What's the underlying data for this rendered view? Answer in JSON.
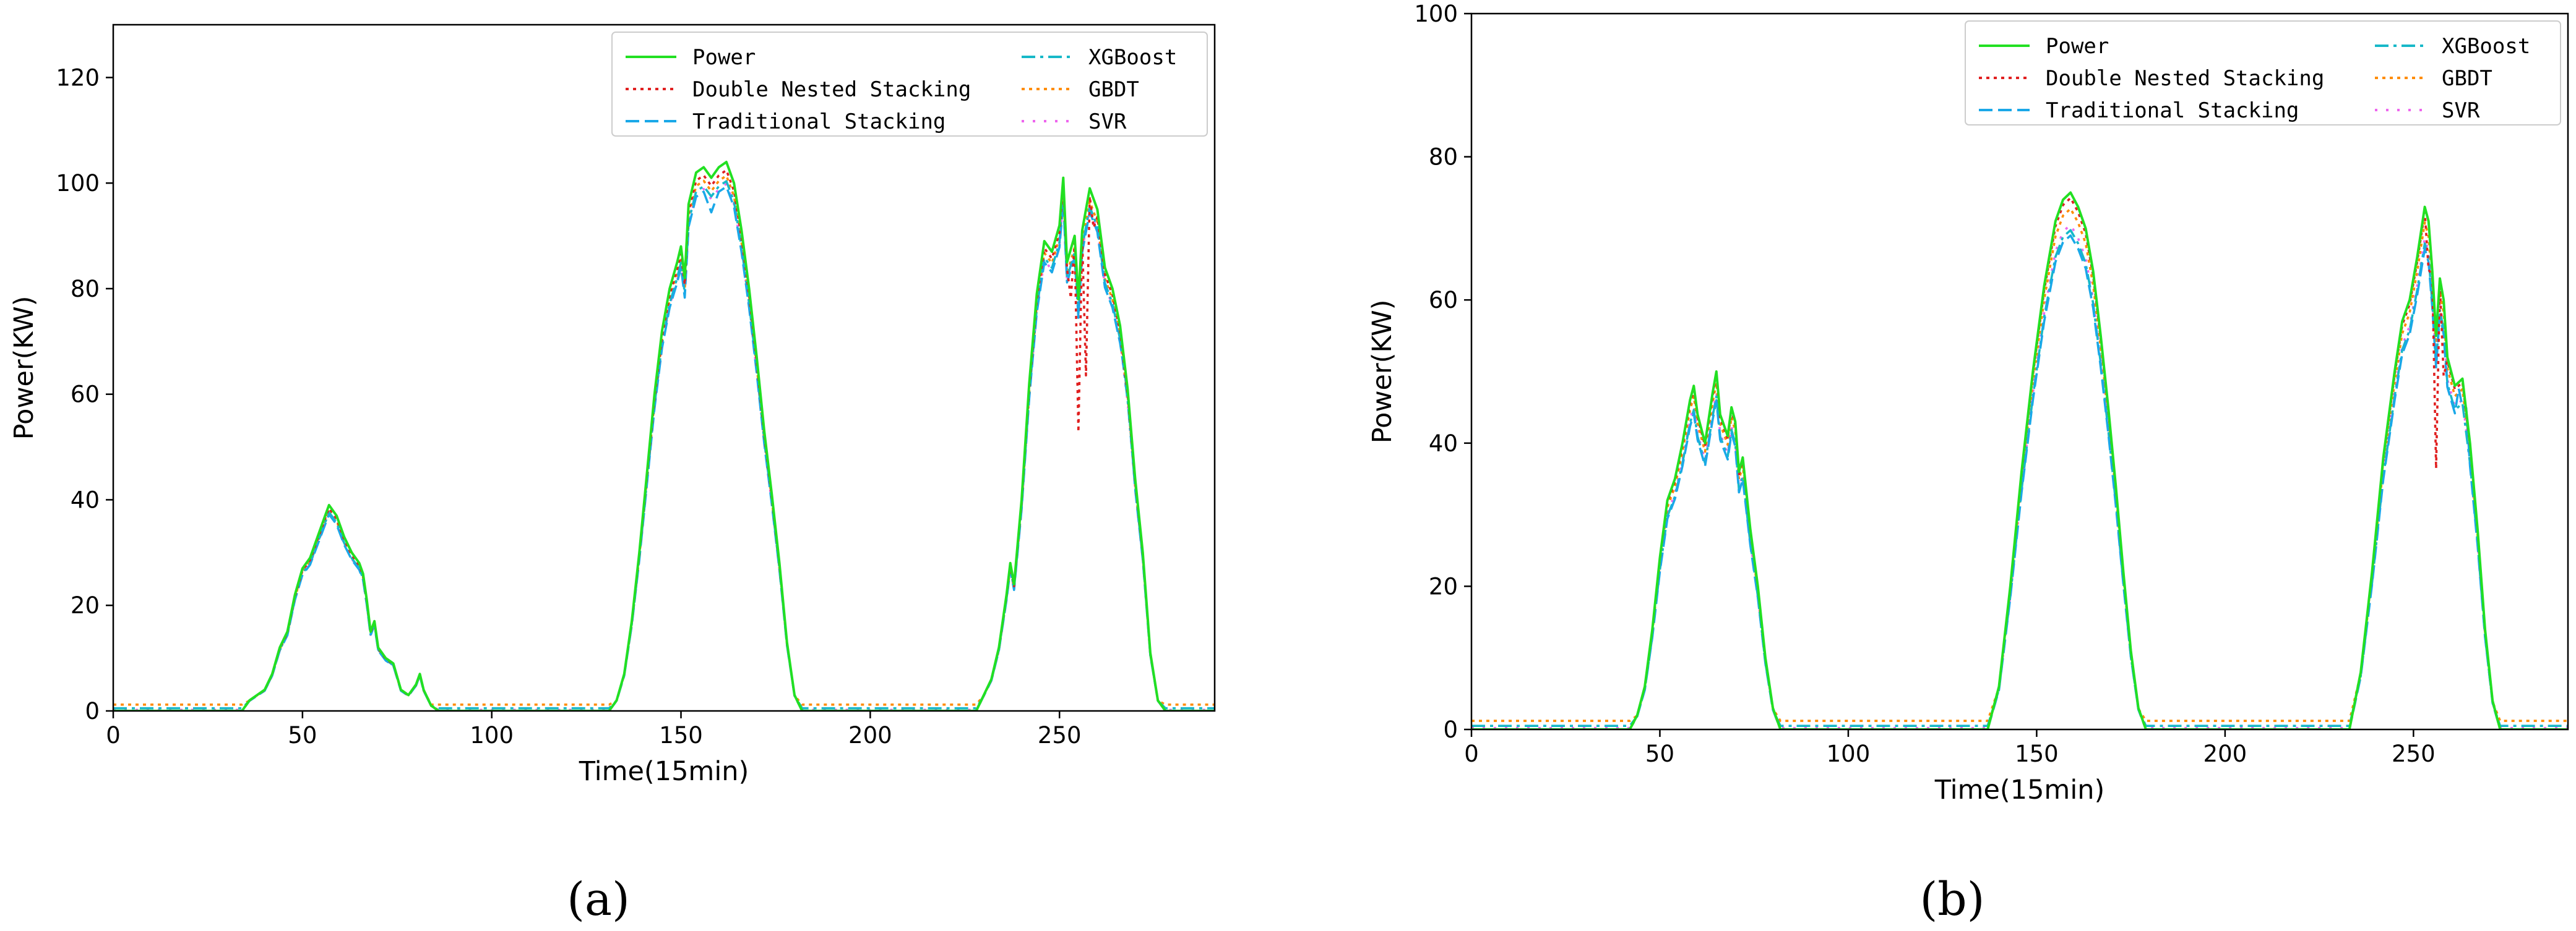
{
  "chart_data": [
    {
      "type": "line",
      "panel_label": "a",
      "title": "",
      "xlabel": "Time(15min)",
      "ylabel": "Power(KW)",
      "xlim": [
        0,
        291
      ],
      "ylim": [
        0,
        130
      ],
      "xticks": [
        0,
        50,
        100,
        150,
        200,
        250
      ],
      "yticks": [
        0,
        20,
        40,
        60,
        80,
        100,
        120
      ],
      "grid": false,
      "legend_position": "top-right",
      "baselines": {
        "GBDT": 1.2,
        "SVR": 0.2,
        "XGBoost": 0.5
      },
      "power": [
        [
          0,
          0
        ],
        [
          34,
          0
        ],
        [
          36,
          2
        ],
        [
          38,
          3
        ],
        [
          40,
          4
        ],
        [
          42,
          7
        ],
        [
          44,
          12
        ],
        [
          46,
          15
        ],
        [
          48,
          22
        ],
        [
          50,
          27
        ],
        [
          52,
          29
        ],
        [
          54,
          33
        ],
        [
          56,
          37
        ],
        [
          57,
          39
        ],
        [
          59,
          37
        ],
        [
          61,
          33
        ],
        [
          63,
          30
        ],
        [
          65,
          28
        ],
        [
          66,
          26
        ],
        [
          67,
          21
        ],
        [
          68,
          15
        ],
        [
          69,
          17
        ],
        [
          70,
          12
        ],
        [
          72,
          10
        ],
        [
          74,
          9
        ],
        [
          76,
          4
        ],
        [
          78,
          3
        ],
        [
          80,
          5
        ],
        [
          81,
          7
        ],
        [
          82,
          4
        ],
        [
          84,
          1
        ],
        [
          86,
          0
        ],
        [
          131,
          0
        ],
        [
          133,
          2
        ],
        [
          135,
          7
        ],
        [
          137,
          17
        ],
        [
          139,
          30
        ],
        [
          141,
          45
        ],
        [
          143,
          60
        ],
        [
          145,
          72
        ],
        [
          147,
          80
        ],
        [
          149,
          85
        ],
        [
          150,
          88
        ],
        [
          151,
          82
        ],
        [
          152,
          96
        ],
        [
          153,
          99
        ],
        [
          154,
          102
        ],
        [
          156,
          103
        ],
        [
          158,
          101
        ],
        [
          160,
          103
        ],
        [
          162,
          104
        ],
        [
          164,
          100
        ],
        [
          166,
          91
        ],
        [
          168,
          80
        ],
        [
          170,
          67
        ],
        [
          172,
          53
        ],
        [
          174,
          41
        ],
        [
          176,
          28
        ],
        [
          178,
          13
        ],
        [
          180,
          3
        ],
        [
          182,
          0
        ],
        [
          228,
          0
        ],
        [
          230,
          3
        ],
        [
          232,
          6
        ],
        [
          234,
          12
        ],
        [
          236,
          22
        ],
        [
          237,
          28
        ],
        [
          238,
          24
        ],
        [
          240,
          40
        ],
        [
          242,
          62
        ],
        [
          244,
          79
        ],
        [
          246,
          89
        ],
        [
          248,
          87
        ],
        [
          250,
          92
        ],
        [
          251,
          101
        ],
        [
          252,
          85
        ],
        [
          254,
          90
        ],
        [
          255,
          78
        ],
        [
          256,
          91
        ],
        [
          258,
          99
        ],
        [
          260,
          95
        ],
        [
          262,
          84
        ],
        [
          264,
          80
        ],
        [
          266,
          73
        ],
        [
          268,
          61
        ],
        [
          270,
          44
        ],
        [
          272,
          30
        ],
        [
          274,
          11
        ],
        [
          276,
          2
        ],
        [
          278,
          0
        ],
        [
          291,
          0
        ]
      ],
      "series": [
        {
          "name": "Power"
        },
        {
          "name": "Double Nested Stacking"
        },
        {
          "name": "Traditional Stacking"
        },
        {
          "name": "XGBoost"
        },
        {
          "name": "GBDT"
        },
        {
          "name": "SVR"
        }
      ]
    },
    {
      "type": "line",
      "panel_label": "b",
      "title": "",
      "xlabel": "Time(15min)",
      "ylabel": "Power(KW)",
      "xlim": [
        0,
        291
      ],
      "ylim": [
        0,
        100
      ],
      "xticks": [
        0,
        50,
        100,
        150,
        200,
        250
      ],
      "yticks": [
        0,
        20,
        40,
        60,
        80,
        100
      ],
      "grid": false,
      "legend_position": "top-right",
      "baselines": {
        "GBDT": 1.2,
        "SVR": 0.2,
        "XGBoost": 0.5
      },
      "power": [
        [
          0,
          0
        ],
        [
          42,
          0
        ],
        [
          44,
          2
        ],
        [
          46,
          6
        ],
        [
          48,
          14
        ],
        [
          50,
          24
        ],
        [
          52,
          32
        ],
        [
          54,
          35
        ],
        [
          56,
          40
        ],
        [
          58,
          46
        ],
        [
          59,
          48
        ],
        [
          60,
          44
        ],
        [
          62,
          40
        ],
        [
          64,
          47
        ],
        [
          65,
          50
        ],
        [
          66,
          44
        ],
        [
          68,
          41
        ],
        [
          69,
          45
        ],
        [
          70,
          43
        ],
        [
          71,
          36
        ],
        [
          72,
          38
        ],
        [
          73,
          33
        ],
        [
          74,
          28
        ],
        [
          76,
          20
        ],
        [
          78,
          10
        ],
        [
          80,
          3
        ],
        [
          82,
          0
        ],
        [
          137,
          0
        ],
        [
          140,
          6
        ],
        [
          143,
          20
        ],
        [
          146,
          36
        ],
        [
          149,
          50
        ],
        [
          152,
          62
        ],
        [
          155,
          71
        ],
        [
          157,
          74
        ],
        [
          159,
          75
        ],
        [
          161,
          73
        ],
        [
          163,
          70
        ],
        [
          165,
          64
        ],
        [
          167,
          55
        ],
        [
          169,
          45
        ],
        [
          171,
          34
        ],
        [
          173,
          22
        ],
        [
          175,
          11
        ],
        [
          177,
          3
        ],
        [
          179,
          0
        ],
        [
          233,
          0
        ],
        [
          236,
          8
        ],
        [
          239,
          22
        ],
        [
          242,
          38
        ],
        [
          245,
          50
        ],
        [
          247,
          57
        ],
        [
          249,
          60
        ],
        [
          251,
          66
        ],
        [
          253,
          73
        ],
        [
          254,
          71
        ],
        [
          255,
          64
        ],
        [
          256,
          55
        ],
        [
          257,
          63
        ],
        [
          258,
          60
        ],
        [
          259,
          52
        ],
        [
          261,
          48
        ],
        [
          263,
          49
        ],
        [
          265,
          40
        ],
        [
          267,
          28
        ],
        [
          269,
          14
        ],
        [
          271,
          4
        ],
        [
          273,
          0
        ],
        [
          291,
          0
        ]
      ],
      "series": [
        {
          "name": "Power"
        },
        {
          "name": "Double Nested Stacking"
        },
        {
          "name": "Traditional Stacking"
        },
        {
          "name": "XGBoost"
        },
        {
          "name": "GBDT"
        },
        {
          "name": "SVR"
        }
      ]
    }
  ],
  "legend": {
    "items": [
      {
        "name": "Power",
        "color": "#22e022",
        "dash": "solid"
      },
      {
        "name": "Double Nested Stacking",
        "color": "#e02020",
        "dash": "dot"
      },
      {
        "name": "Traditional Stacking",
        "color": "#1aa8e8",
        "dash": "dash"
      },
      {
        "name": "XGBoost",
        "color": "#17b8c8",
        "dash": "dashdot"
      },
      {
        "name": "GBDT",
        "color": "#ff8c00",
        "dash": "dot"
      },
      {
        "name": "SVR",
        "color": "#ee66ee",
        "dash": "sparse-dot"
      }
    ]
  },
  "panels": {
    "a": {
      "label": "(a)"
    },
    "b": {
      "label": "(b)"
    }
  }
}
